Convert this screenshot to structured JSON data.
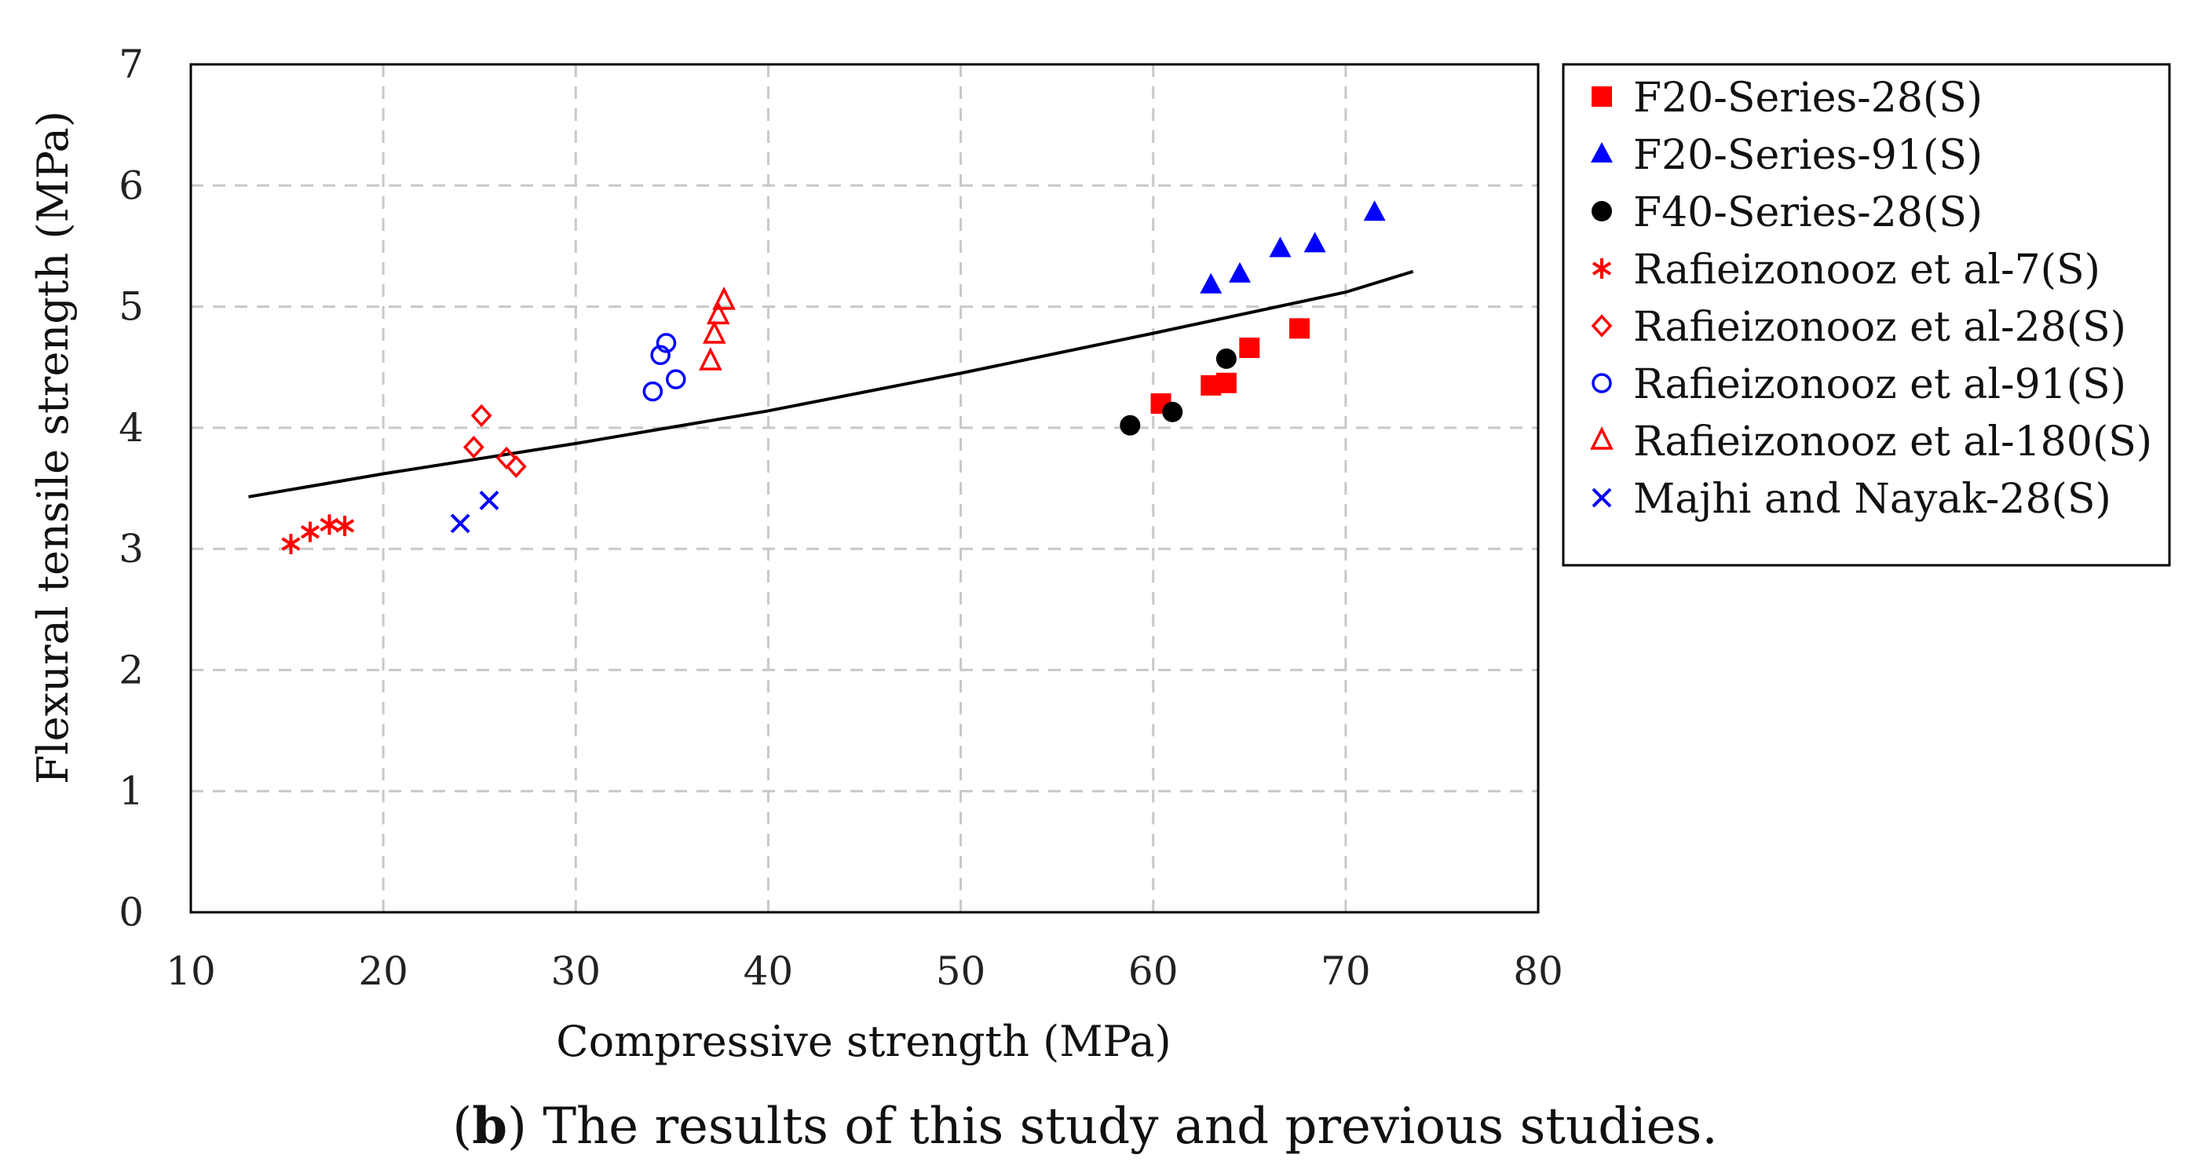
{
  "chart_data": {
    "type": "scatter",
    "xlabel": "Compressive strength (MPa)",
    "ylabel": "Flexural tensile strength (MPa)",
    "xlim": [
      10,
      80
    ],
    "ylim": [
      0,
      7
    ],
    "xticks": [
      10,
      20,
      30,
      40,
      50,
      60,
      70,
      80
    ],
    "yticks": [
      0,
      1,
      2,
      3,
      4,
      5,
      6,
      7
    ],
    "grid": true,
    "legend_position": "right",
    "series": [
      {
        "name": "F20-Series-28(S)",
        "marker": "square-filled",
        "color": "#ff0000",
        "points": [
          [
            60.4,
            4.2
          ],
          [
            63.0,
            4.35
          ],
          [
            63.8,
            4.37
          ],
          [
            65.0,
            4.66
          ],
          [
            67.6,
            4.82
          ]
        ]
      },
      {
        "name": "F20-Series-91(S)",
        "marker": "triangle-filled",
        "color": "#0000ff",
        "points": [
          [
            63.0,
            5.18
          ],
          [
            64.5,
            5.27
          ],
          [
            66.6,
            5.48
          ],
          [
            68.4,
            5.52
          ],
          [
            71.5,
            5.78
          ]
        ]
      },
      {
        "name": "F40-Series-28(S)",
        "marker": "circle-filled",
        "color": "#000000",
        "points": [
          [
            58.8,
            4.02
          ],
          [
            61.0,
            4.13
          ],
          [
            63.8,
            4.57
          ]
        ]
      },
      {
        "name": "Rafieizonooz et al-7(S)",
        "marker": "asterisk",
        "color": "#ff0000",
        "points": [
          [
            15.2,
            3.04
          ],
          [
            16.2,
            3.14
          ],
          [
            17.2,
            3.2
          ],
          [
            18.0,
            3.19
          ]
        ]
      },
      {
        "name": "Rafieizonooz et al-28(S)",
        "marker": "diamond-open",
        "color": "#ff0000",
        "points": [
          [
            24.7,
            3.84
          ],
          [
            25.1,
            4.1
          ],
          [
            26.4,
            3.75
          ],
          [
            26.9,
            3.68
          ]
        ]
      },
      {
        "name": "Rafieizonooz et al-91(S)",
        "marker": "circle-open",
        "color": "#0000ff",
        "points": [
          [
            34.0,
            4.3
          ],
          [
            34.4,
            4.6
          ],
          [
            34.7,
            4.7
          ],
          [
            35.2,
            4.4
          ]
        ]
      },
      {
        "name": "Rafieizonooz et al-180(S)",
        "marker": "triangle-open",
        "color": "#ff0000",
        "points": [
          [
            37.0,
            4.55
          ],
          [
            37.2,
            4.77
          ],
          [
            37.4,
            4.93
          ],
          [
            37.7,
            5.05
          ]
        ]
      },
      {
        "name": "Majhi and Nayak-28(S)",
        "marker": "x",
        "color": "#0000ff",
        "points": [
          [
            24.0,
            3.21
          ],
          [
            25.5,
            3.4
          ]
        ]
      }
    ],
    "trendline": {
      "color": "#000000",
      "points": [
        [
          13,
          3.43
        ],
        [
          20,
          3.62
        ],
        [
          30,
          3.87
        ],
        [
          40,
          4.14
        ],
        [
          50,
          4.45
        ],
        [
          60,
          4.78
        ],
        [
          70,
          5.12
        ],
        [
          73.5,
          5.29
        ]
      ]
    }
  },
  "caption": {
    "prefix": "(",
    "bold": "b",
    "suffix": ") The results of this study and previous studies."
  }
}
